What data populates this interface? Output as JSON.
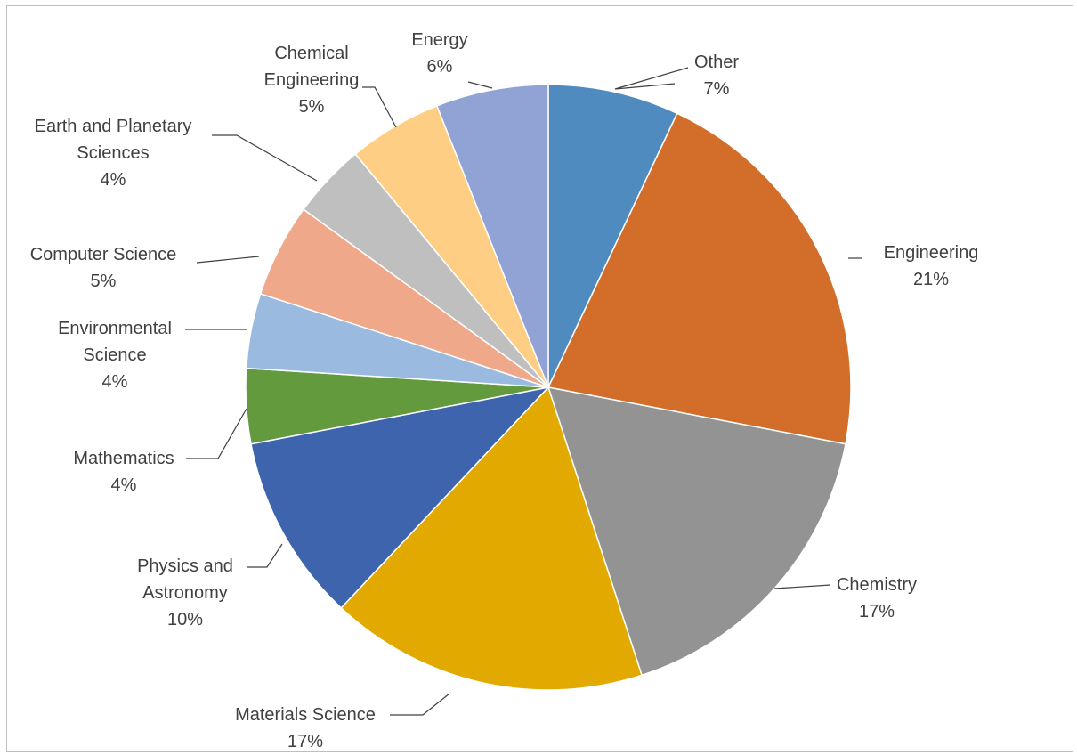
{
  "chart_data": {
    "type": "pie",
    "title": "",
    "start_angle_deg": 0,
    "direction": "clockwise",
    "slices": [
      {
        "label": "Other",
        "value": 7,
        "value_label": "7%",
        "color": "#4F8BBF"
      },
      {
        "label": "Engineering",
        "value": 21,
        "value_label": "21%",
        "color": "#D26E2A"
      },
      {
        "label": "Chemistry",
        "value": 17,
        "value_label": "17%",
        "color": "#939393"
      },
      {
        "label": "Materials Science",
        "value": 17,
        "value_label": "17%",
        "color": "#E2A900"
      },
      {
        "label": "Physics and Astronomy",
        "value": 10,
        "value_label": "10%",
        "color": "#3D64AD"
      },
      {
        "label": "Mathematics",
        "value": 4,
        "value_label": "4%",
        "color": "#629A3D"
      },
      {
        "label": "Environmental Science",
        "value": 4,
        "value_label": "4%",
        "color": "#9ABAE0"
      },
      {
        "label": "Computer Science",
        "value": 5,
        "value_label": "5%",
        "color": "#F0A88A"
      },
      {
        "label": "Earth and Planetary Sciences",
        "value": 4,
        "value_label": "4%",
        "color": "#BFBFBF"
      },
      {
        "label": "Chemical Engineering",
        "value": 5,
        "value_label": "5%",
        "color": "#FFCE85"
      },
      {
        "label": "Energy",
        "value": 6,
        "value_label": "6%",
        "color": "#91A3D5"
      }
    ],
    "label_lines": {
      "Other": [
        "Other",
        "7%"
      ],
      "Engineering": [
        "Engineering",
        "21%"
      ],
      "Chemistry": [
        "Chemistry",
        "17%"
      ],
      "Materials Science": [
        "Materials Science",
        "17%"
      ],
      "Physics and Astronomy": [
        "Physics and",
        "Astronomy",
        "10%"
      ],
      "Mathematics": [
        "Mathematics",
        "4%"
      ],
      "Environmental Science": [
        "Environmental",
        "Science",
        "4%"
      ],
      "Computer Science": [
        "Computer Science",
        "5%"
      ],
      "Earth and Planetary Sciences": [
        "Earth and Planetary",
        "Sciences",
        "4%"
      ],
      "Chemical Engineering": [
        "Chemical",
        "Engineering",
        "5%"
      ],
      "Energy": [
        "Energy",
        "6%"
      ]
    },
    "legend": "none",
    "data_labels": "outside with leader lines"
  }
}
